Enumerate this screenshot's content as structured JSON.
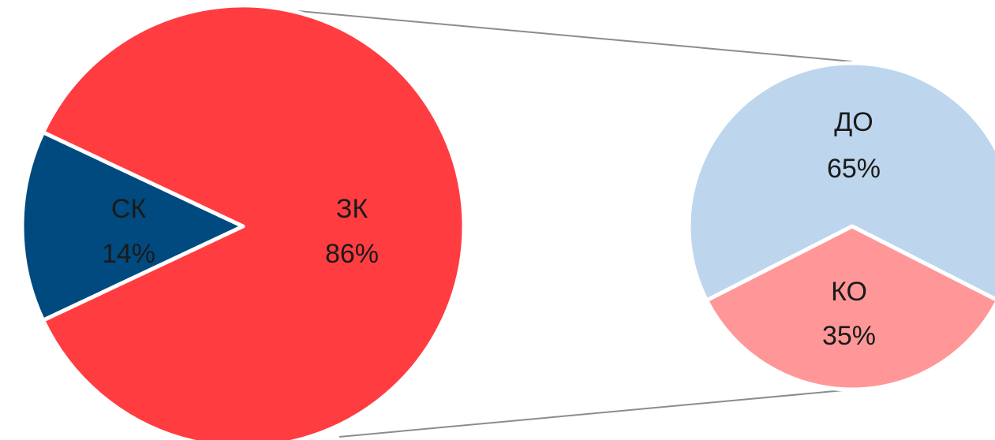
{
  "chart_data": {
    "type": "pie",
    "subtype": "pie-of-pie",
    "main_pie": {
      "slices": [
        {
          "label": "СК",
          "value": 14,
          "value_label": "14%",
          "color": "#004a7f"
        },
        {
          "label": "ЗК",
          "value": 86,
          "value_label": "86%",
          "color": "#ff3d41"
        }
      ]
    },
    "secondary_pie": {
      "source_slice": "ЗК",
      "slices": [
        {
          "label": "ДО",
          "value": 65,
          "value_label": "65%",
          "color": "#bdd6ee"
        },
        {
          "label": "КО",
          "value": 35,
          "value_label": "35%",
          "color": "#ff9798"
        }
      ]
    }
  }
}
